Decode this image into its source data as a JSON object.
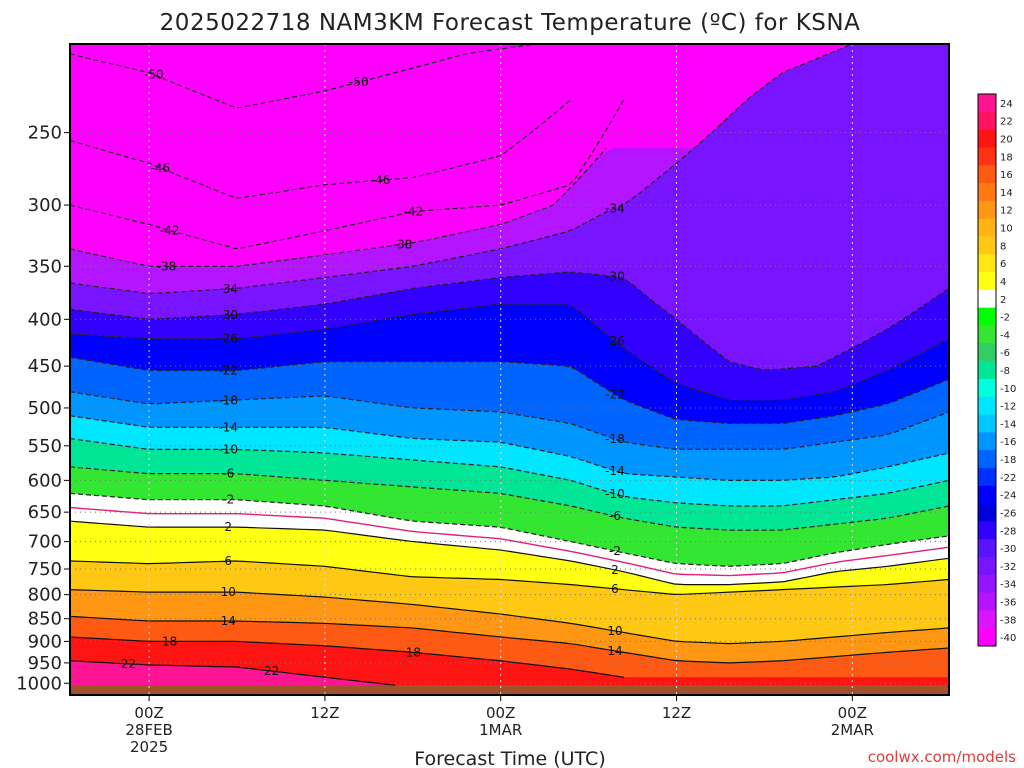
{
  "chart_data": {
    "type": "heatmap",
    "title": "2025022718 NAM3KM Forecast Temperature (ºC) for KSNA",
    "xlabel": "Forecast Time (UTC)",
    "ylabel": "",
    "y_scale": "log",
    "y_inverted": true,
    "ylim": [
      1030,
      200
    ],
    "xlim": [
      -4.5,
      45.5
    ],
    "y_ticks": [
      250,
      300,
      350,
      400,
      450,
      500,
      550,
      600,
      650,
      700,
      750,
      800,
      850,
      900,
      950,
      1000
    ],
    "x_ticks": [
      {
        "x": 0,
        "lines": [
          "00Z",
          "28FEB",
          "2025"
        ]
      },
      {
        "x": 10,
        "lines": [
          "12Z"
        ]
      },
      {
        "x": 20,
        "lines": [
          "00Z",
          "1MAR"
        ]
      },
      {
        "x": 30,
        "lines": [
          "12Z"
        ]
      },
      {
        "x": 40,
        "lines": [
          "00Z",
          "2MAR"
        ]
      }
    ],
    "grid": true,
    "colorbar": {
      "labels": [
        "24",
        "22",
        "20",
        "18",
        "16",
        "14",
        "12",
        "10",
        "8",
        "6",
        "4",
        "2",
        "-2",
        "-4",
        "-6",
        "-8",
        "-10",
        "-12",
        "-14",
        "-16",
        "-18",
        "-22",
        "-24",
        "-26",
        "-28",
        "-30",
        "-32",
        "-34",
        "-36",
        "-38",
        "-40"
      ],
      "colors": [
        "#ff1493",
        "#ff1464",
        "#ff1414",
        "#ff3214",
        "#ff5a14",
        "#ff7814",
        "#ff9614",
        "#ffb414",
        "#ffc814",
        "#ffe614",
        "#ffff14",
        "#ffffff",
        "#00ff00",
        "#32e632",
        "#32cd64",
        "#00e696",
        "#00ffdc",
        "#00e6ff",
        "#00c8ff",
        "#0096ff",
        "#0064ff",
        "#0032ff",
        "#0000ff",
        "#0000dc",
        "#3200ff",
        "#5a14ff",
        "#7814ff",
        "#9614ff",
        "#b414ff",
        "#dc14ff",
        "#ff00ff"
      ]
    },
    "series": [
      {
        "name": "-50",
        "x": [
          -4.5,
          0,
          5,
          10,
          14,
          18,
          22
        ],
        "y": [
          205,
          215,
          235,
          225,
          215,
          205,
          200
        ]
      },
      {
        "name": "-46",
        "x": [
          -4.5,
          0,
          5,
          10,
          15,
          20,
          24
        ],
        "y": [
          255,
          270,
          295,
          285,
          280,
          265,
          230
        ]
      },
      {
        "name": "-42",
        "x": [
          -4.5,
          0,
          5,
          10,
          15,
          20,
          24,
          27
        ],
        "y": [
          300,
          315,
          335,
          320,
          305,
          300,
          285,
          230
        ]
      },
      {
        "name": "-38",
        "x": [
          -4.5,
          0,
          5,
          10,
          15,
          20,
          23,
          26
        ],
        "y": [
          335,
          350,
          350,
          340,
          330,
          315,
          300,
          260
        ]
      },
      {
        "name": "-34",
        "x": [
          -4.5,
          0,
          5,
          10,
          15,
          20,
          24,
          26,
          27,
          30,
          34,
          36,
          40,
          45.5
        ],
        "y": [
          365,
          375,
          370,
          360,
          350,
          335,
          320,
          305,
          300,
          270,
          230,
          215,
          200,
          200
        ]
      },
      {
        "name": "-30",
        "x": [
          -4.5,
          0,
          5,
          10,
          15,
          20,
          24,
          27,
          30,
          33,
          35,
          38,
          42,
          45.5
        ],
        "y": [
          390,
          400,
          395,
          385,
          370,
          360,
          355,
          360,
          400,
          445,
          455,
          450,
          410,
          370
        ]
      },
      {
        "name": "-26",
        "x": [
          -4.5,
          0,
          5,
          10,
          15,
          20,
          24,
          27,
          30,
          33,
          36,
          39,
          42,
          45.5
        ],
        "y": [
          415,
          420,
          420,
          410,
          395,
          385,
          385,
          430,
          470,
          490,
          490,
          480,
          455,
          420
        ]
      },
      {
        "name": "-22",
        "x": [
          -4.5,
          0,
          5,
          10,
          15,
          20,
          24,
          27,
          30,
          33,
          36,
          39,
          42,
          45.5
        ],
        "y": [
          440,
          455,
          455,
          445,
          445,
          445,
          450,
          490,
          515,
          520,
          520,
          510,
          495,
          465
        ]
      },
      {
        "name": "-18",
        "x": [
          -4.5,
          0,
          5,
          10,
          15,
          20,
          24,
          27,
          30,
          33,
          36,
          39,
          42,
          45.5
        ],
        "y": [
          480,
          495,
          490,
          485,
          500,
          505,
          520,
          545,
          555,
          555,
          555,
          545,
          535,
          505
        ]
      },
      {
        "name": "-14",
        "x": [
          -4.5,
          0,
          5,
          10,
          15,
          20,
          24,
          27,
          30,
          33,
          36,
          39,
          42,
          45.5
        ],
        "y": [
          510,
          525,
          525,
          525,
          540,
          545,
          565,
          590,
          595,
          600,
          600,
          595,
          580,
          560
        ]
      },
      {
        "name": "-10",
        "x": [
          -4.5,
          0,
          5,
          10,
          15,
          20,
          24,
          27,
          30,
          33,
          36,
          39,
          42,
          45.5
        ],
        "y": [
          540,
          555,
          555,
          560,
          570,
          580,
          600,
          625,
          635,
          640,
          640,
          630,
          620,
          600
        ]
      },
      {
        "name": "-6",
        "x": [
          -4.5,
          0,
          5,
          10,
          15,
          20,
          24,
          27,
          30,
          33,
          36,
          39,
          42,
          45.5
        ],
        "y": [
          580,
          590,
          590,
          600,
          610,
          620,
          640,
          660,
          675,
          680,
          680,
          670,
          660,
          640
        ]
      },
      {
        "name": "-2",
        "x": [
          -4.5,
          0,
          5,
          10,
          15,
          20,
          24,
          27,
          30,
          33,
          36,
          39,
          42,
          45.5
        ],
        "y": [
          620,
          630,
          630,
          640,
          665,
          675,
          700,
          720,
          740,
          745,
          740,
          720,
          705,
          690
        ]
      },
      {
        "name": "2",
        "x": [
          -4.5,
          0,
          5,
          10,
          15,
          20,
          24,
          27,
          30,
          33,
          36,
          39,
          42,
          45.5
        ],
        "y": [
          665,
          675,
          675,
          680,
          700,
          715,
          735,
          755,
          780,
          780,
          775,
          755,
          745,
          730
        ]
      },
      {
        "name": "6",
        "x": [
          -4.5,
          0,
          5,
          10,
          15,
          20,
          24,
          27,
          30,
          33,
          36,
          39,
          42,
          45.5
        ],
        "y": [
          735,
          740,
          735,
          745,
          765,
          770,
          780,
          790,
          800,
          795,
          790,
          785,
          780,
          770
        ]
      },
      {
        "name": "10",
        "x": [
          -4.5,
          0,
          5,
          10,
          15,
          20,
          24,
          27,
          30,
          33,
          36,
          39,
          42,
          45.5
        ],
        "y": [
          790,
          795,
          795,
          805,
          820,
          840,
          860,
          880,
          900,
          905,
          900,
          890,
          880,
          870
        ]
      },
      {
        "name": "14",
        "x": [
          -4.5,
          0,
          5,
          10,
          15,
          20,
          24,
          27,
          30,
          33,
          36,
          39,
          42,
          45.5
        ],
        "y": [
          845,
          855,
          855,
          860,
          870,
          890,
          905,
          925,
          945,
          950,
          945,
          935,
          925,
          915
        ]
      },
      {
        "name": "18",
        "x": [
          -4.5,
          0,
          5,
          10,
          15,
          20,
          24,
          27
        ],
        "y": [
          890,
          900,
          900,
          910,
          925,
          945,
          965,
          985
        ]
      },
      {
        "name": "22",
        "x": [
          -4.5,
          0,
          5,
          8,
          11,
          14
        ],
        "y": [
          945,
          955,
          960,
          975,
          990,
          1005
        ]
      }
    ]
  },
  "credit": "coolwx.com/models"
}
